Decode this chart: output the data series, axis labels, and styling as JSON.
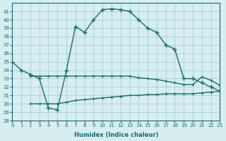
{
  "xlabel": "Humidex (Indice chaleur)",
  "ylabel": "",
  "bg_color": "#d6eef0",
  "grid_color": "#a0c8cc",
  "line_color": "#1a6b6b",
  "ylim": [
    28,
    42
  ],
  "xlim": [
    0,
    23
  ],
  "yticks": [
    28,
    29,
    30,
    31,
    32,
    33,
    34,
    35,
    36,
    37,
    38,
    39,
    40,
    41
  ],
  "xticks": [
    0,
    1,
    2,
    3,
    4,
    5,
    6,
    7,
    8,
    9,
    10,
    11,
    12,
    13,
    14,
    15,
    16,
    17,
    18,
    19,
    20,
    21,
    22,
    23
  ],
  "curve1_x": [
    0,
    1,
    2,
    3,
    4,
    5,
    6,
    7,
    8,
    9,
    10,
    11,
    12,
    13,
    14,
    15,
    16,
    17,
    18,
    19,
    20,
    21,
    22,
    23
  ],
  "curve1_y": [
    35,
    34,
    33.5,
    33,
    29.5,
    29.3,
    34,
    39.2,
    38.5,
    40,
    41.2,
    41.3,
    41.2,
    41,
    40,
    39,
    38.5,
    37,
    36.5,
    33,
    33,
    32.5,
    32.0,
    31.5
  ],
  "curve2_x": [
    2,
    3,
    4,
    5,
    6,
    7,
    8,
    9,
    10,
    11,
    12,
    13,
    14,
    15,
    16,
    17,
    18,
    19,
    20,
    21,
    22,
    23
  ],
  "curve2_y": [
    33.3,
    33.3,
    33.3,
    33.3,
    33.3,
    33.3,
    33.3,
    33.3,
    33.3,
    33.3,
    33.3,
    33.3,
    33.1,
    33.0,
    32.9,
    32.7,
    32.5,
    32.3,
    32.3,
    33.2,
    32.8,
    32.2
  ],
  "curve3_x": [
    2,
    3,
    4,
    5,
    6,
    7,
    8,
    9,
    10,
    11,
    12,
    13,
    14,
    15,
    16,
    17,
    18,
    19,
    20,
    21,
    22,
    23
  ],
  "curve3_y": [
    30,
    30,
    30,
    30,
    30.2,
    30.4,
    30.5,
    30.6,
    30.7,
    30.8,
    30.9,
    31.0,
    31.0,
    31.1,
    31.1,
    31.2,
    31.2,
    31.2,
    31.2,
    31.3,
    31.4,
    31.5
  ]
}
